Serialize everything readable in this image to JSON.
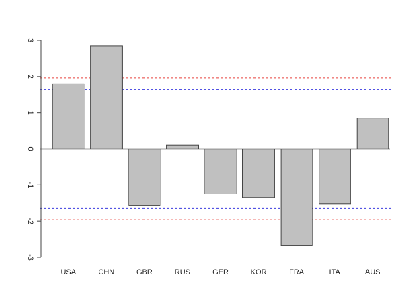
{
  "chart_data": {
    "type": "bar",
    "title": "",
    "xlabel": "",
    "ylabel": "",
    "categories": [
      "USA",
      "CHN",
      "GBR",
      "RUS",
      "GER",
      "KOR",
      "FRA",
      "ITA",
      "AUS"
    ],
    "values": [
      1.8,
      2.85,
      -1.57,
      0.1,
      -1.25,
      -1.35,
      -2.67,
      -1.52,
      0.85
    ],
    "ylim": [
      -3,
      3
    ],
    "yticks": [
      -3,
      -2,
      -1,
      0,
      1,
      2,
      3
    ],
    "ytick_labels": [
      "-3",
      "-2",
      "-1",
      "0",
      "1",
      "2",
      "3"
    ],
    "grid": false,
    "bar_fill": "#c0c0c0",
    "bar_stroke": "#444444",
    "reference_lines": [
      {
        "y": 1.96,
        "color": "#e8413c",
        "style": "dashed"
      },
      {
        "y": -1.96,
        "color": "#e8413c",
        "style": "dashed"
      },
      {
        "y": 1.645,
        "color": "#3a3adf",
        "style": "dashed"
      },
      {
        "y": -1.645,
        "color": "#3a3adf",
        "style": "dashed"
      }
    ]
  }
}
